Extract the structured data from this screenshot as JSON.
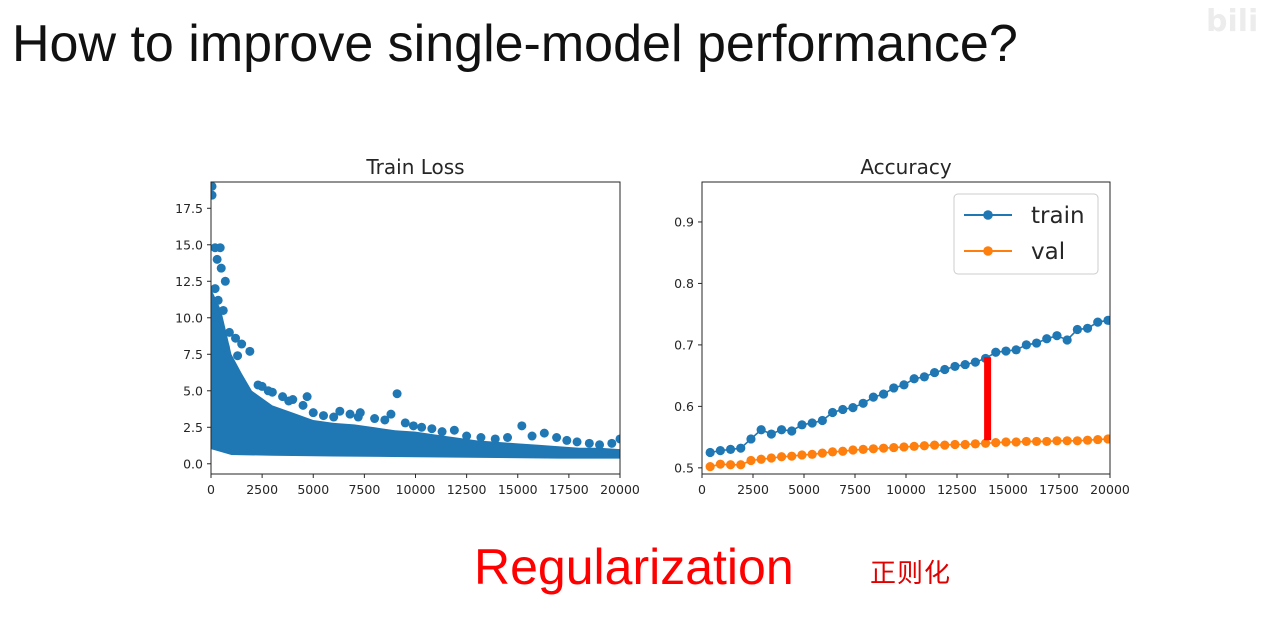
{
  "slide": {
    "title": "How to improve single-model performance?",
    "bottom_text": "Regularization",
    "handwritten_note": "正则化",
    "watermark": "bilibili",
    "title_color": "#111111",
    "accent_color": "#ff0000"
  },
  "chart_data": [
    {
      "type": "scatter",
      "title": "Train Loss",
      "xlabel": "",
      "ylabel": "",
      "xlim": [
        0,
        20000
      ],
      "ylim": [
        -0.7,
        19.3
      ],
      "xticks": [
        0,
        2500,
        5000,
        7500,
        10000,
        12500,
        15000,
        17500,
        20000
      ],
      "yticks": [
        0.0,
        2.5,
        5.0,
        7.5,
        10.0,
        12.5,
        15.0,
        17.5
      ],
      "yticks_format": "0.0",
      "grid": false,
      "color": "#1f77b4",
      "series": [
        {
          "points": [
            [
              50,
              19.0
            ],
            [
              50,
              18.4
            ],
            [
              200,
              14.8
            ],
            [
              300,
              14.0
            ],
            [
              450,
              14.8
            ],
            [
              500,
              13.4
            ],
            [
              200,
              12.0
            ],
            [
              350,
              11.2
            ],
            [
              700,
              12.5
            ],
            [
              100,
              10.6
            ],
            [
              600,
              10.5
            ],
            [
              250,
              9.5
            ],
            [
              900,
              9.0
            ],
            [
              1200,
              8.6
            ],
            [
              1500,
              8.2
            ],
            [
              1900,
              7.7
            ],
            [
              700,
              8.0
            ],
            [
              1300,
              7.4
            ],
            [
              2300,
              5.4
            ],
            [
              2500,
              5.3
            ],
            [
              3000,
              4.9
            ],
            [
              3500,
              4.6
            ],
            [
              4000,
              4.4
            ],
            [
              4500,
              4.0
            ],
            [
              5000,
              3.5
            ],
            [
              5500,
              3.3
            ],
            [
              6000,
              3.2
            ],
            [
              6300,
              3.6
            ],
            [
              6800,
              3.4
            ],
            [
              7200,
              3.2
            ],
            [
              7300,
              3.5
            ],
            [
              8000,
              3.1
            ],
            [
              8500,
              3.0
            ],
            [
              9100,
              4.8
            ],
            [
              8800,
              3.4
            ],
            [
              9500,
              2.8
            ],
            [
              9900,
              2.6
            ],
            [
              10300,
              2.5
            ],
            [
              10800,
              2.4
            ],
            [
              11300,
              2.2
            ],
            [
              11900,
              2.3
            ],
            [
              12500,
              1.9
            ],
            [
              13200,
              1.8
            ],
            [
              13900,
              1.7
            ],
            [
              14500,
              1.8
            ],
            [
              15200,
              2.6
            ],
            [
              15700,
              1.9
            ],
            [
              16300,
              2.1
            ],
            [
              16900,
              1.8
            ],
            [
              17400,
              1.6
            ],
            [
              17900,
              1.5
            ],
            [
              18500,
              1.4
            ],
            [
              19000,
              1.3
            ],
            [
              19600,
              1.4
            ],
            [
              20000,
              1.7
            ],
            [
              4700,
              4.6
            ],
            [
              3800,
              4.3
            ],
            [
              2800,
              5.0
            ]
          ],
          "band": {
            "upper": [
              [
                0,
                12.0
              ],
              [
                500,
                10.5
              ],
              [
                1000,
                7.5
              ],
              [
                1500,
                6.2
              ],
              [
                2000,
                5.0
              ],
              [
                3000,
                4.0
              ],
              [
                4000,
                3.5
              ],
              [
                5000,
                3.0
              ],
              [
                6000,
                2.8
              ],
              [
                7000,
                2.7
              ],
              [
                8000,
                2.5
              ],
              [
                9000,
                2.3
              ],
              [
                10000,
                2.2
              ],
              [
                11000,
                2.0
              ],
              [
                12000,
                1.8
              ],
              [
                13000,
                1.6
              ],
              [
                14000,
                1.5
              ],
              [
                15000,
                1.4
              ],
              [
                16000,
                1.3
              ],
              [
                17000,
                1.2
              ],
              [
                18000,
                1.1
              ],
              [
                19000,
                1.1
              ],
              [
                20000,
                1.0
              ]
            ],
            "lower": [
              [
                0,
                1.0
              ],
              [
                1000,
                0.6
              ],
              [
                3000,
                0.55
              ],
              [
                6000,
                0.5
              ],
              [
                10000,
                0.45
              ],
              [
                14000,
                0.4
              ],
              [
                17000,
                0.35
              ],
              [
                20000,
                0.35
              ]
            ]
          }
        }
      ]
    },
    {
      "type": "line",
      "title": "Accuracy",
      "xlabel": "",
      "ylabel": "",
      "xlim": [
        0,
        20000
      ],
      "ylim": [
        0.49,
        0.965
      ],
      "xticks": [
        0,
        2500,
        5000,
        7500,
        10000,
        12500,
        15000,
        17500,
        20000
      ],
      "yticks": [
        0.5,
        0.6,
        0.7,
        0.8,
        0.9
      ],
      "yticks_format": "0.0",
      "grid": false,
      "legend": "top-right",
      "series": [
        {
          "name": "train",
          "color": "#1f77b4",
          "x": [
            400,
            900,
            1400,
            1900,
            2400,
            2900,
            3400,
            3900,
            4400,
            4900,
            5400,
            5900,
            6400,
            6900,
            7400,
            7900,
            8400,
            8900,
            9400,
            9900,
            10400,
            10900,
            11400,
            11900,
            12400,
            12900,
            13400,
            13900,
            14400,
            14900,
            15400,
            15900,
            16400,
            16900,
            17400,
            17900,
            18400,
            18900,
            19400,
            19900
          ],
          "values": [
            0.525,
            0.528,
            0.53,
            0.532,
            0.547,
            0.562,
            0.555,
            0.562,
            0.56,
            0.57,
            0.573,
            0.577,
            0.59,
            0.595,
            0.598,
            0.605,
            0.615,
            0.62,
            0.63,
            0.635,
            0.645,
            0.648,
            0.655,
            0.66,
            0.665,
            0.668,
            0.672,
            0.678,
            0.688,
            0.69,
            0.692,
            0.7,
            0.703,
            0.71,
            0.715,
            0.708,
            0.725,
            0.727,
            0.737,
            0.74
          ]
        },
        {
          "name": "val",
          "color": "#ff7f0e",
          "x": [
            400,
            900,
            1400,
            1900,
            2400,
            2900,
            3400,
            3900,
            4400,
            4900,
            5400,
            5900,
            6400,
            6900,
            7400,
            7900,
            8400,
            8900,
            9400,
            9900,
            10400,
            10900,
            11400,
            11900,
            12400,
            12900,
            13400,
            13900,
            14400,
            14900,
            15400,
            15900,
            16400,
            16900,
            17400,
            17900,
            18400,
            18900,
            19400,
            19900
          ],
          "values": [
            0.502,
            0.506,
            0.505,
            0.505,
            0.512,
            0.514,
            0.516,
            0.518,
            0.519,
            0.521,
            0.522,
            0.524,
            0.526,
            0.527,
            0.529,
            0.53,
            0.531,
            0.532,
            0.533,
            0.534,
            0.535,
            0.536,
            0.537,
            0.537,
            0.538,
            0.538,
            0.539,
            0.54,
            0.541,
            0.542,
            0.542,
            0.543,
            0.543,
            0.543,
            0.544,
            0.544,
            0.544,
            0.545,
            0.546,
            0.547
          ]
        }
      ],
      "annotations": [
        {
          "type": "vertical-bar",
          "color": "#ff0000",
          "x": 14000,
          "y_from": 0.545,
          "y_to": 0.68
        }
      ]
    }
  ]
}
